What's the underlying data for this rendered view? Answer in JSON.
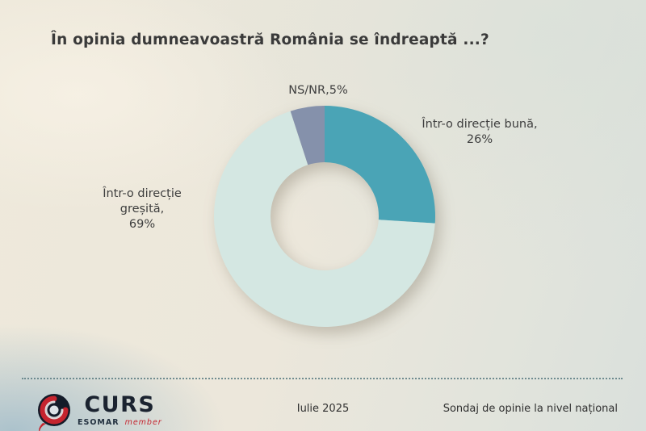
{
  "slide": {
    "title": "În opinia dumneavoastră România se îndreaptă ...?"
  },
  "chart_data": {
    "type": "pie",
    "subtype": "donut",
    "title": "În opinia dumneavoastră România se îndreaptă ...?",
    "categories": [
      "Într-o direcție bună",
      "Într-o direcție greșită",
      "NS/NR"
    ],
    "values": [
      26,
      69,
      5
    ],
    "unit": "%",
    "colors": [
      "#4aa4b6",
      "#d4e7e2",
      "#8591ab"
    ],
    "start_angle_deg": 0,
    "direction": "clockwise",
    "inner_radius_ratio": 0.49,
    "legend_position": "none",
    "data_labels": [
      {
        "lines": [
          "Într-o direcție bună,",
          "26%"
        ]
      },
      {
        "lines": [
          "Într-o direcție",
          "greșită,",
          "69%"
        ]
      },
      {
        "lines": [
          "NS/NR,5%"
        ]
      }
    ]
  },
  "footer": {
    "date": "Iulie 2025",
    "note": "Sondaj de opinie la nivel național",
    "logo": {
      "brand": "CURS",
      "esomar": "ESOMAR",
      "member": "member"
    }
  },
  "colors": {
    "accent_teal": "#4aa4b6",
    "mint": "#d4e7e2",
    "gray_blue": "#8591ab",
    "text": "#3a3a3a",
    "logo_navy": "#1b2330",
    "logo_red": "#c5242e"
  }
}
